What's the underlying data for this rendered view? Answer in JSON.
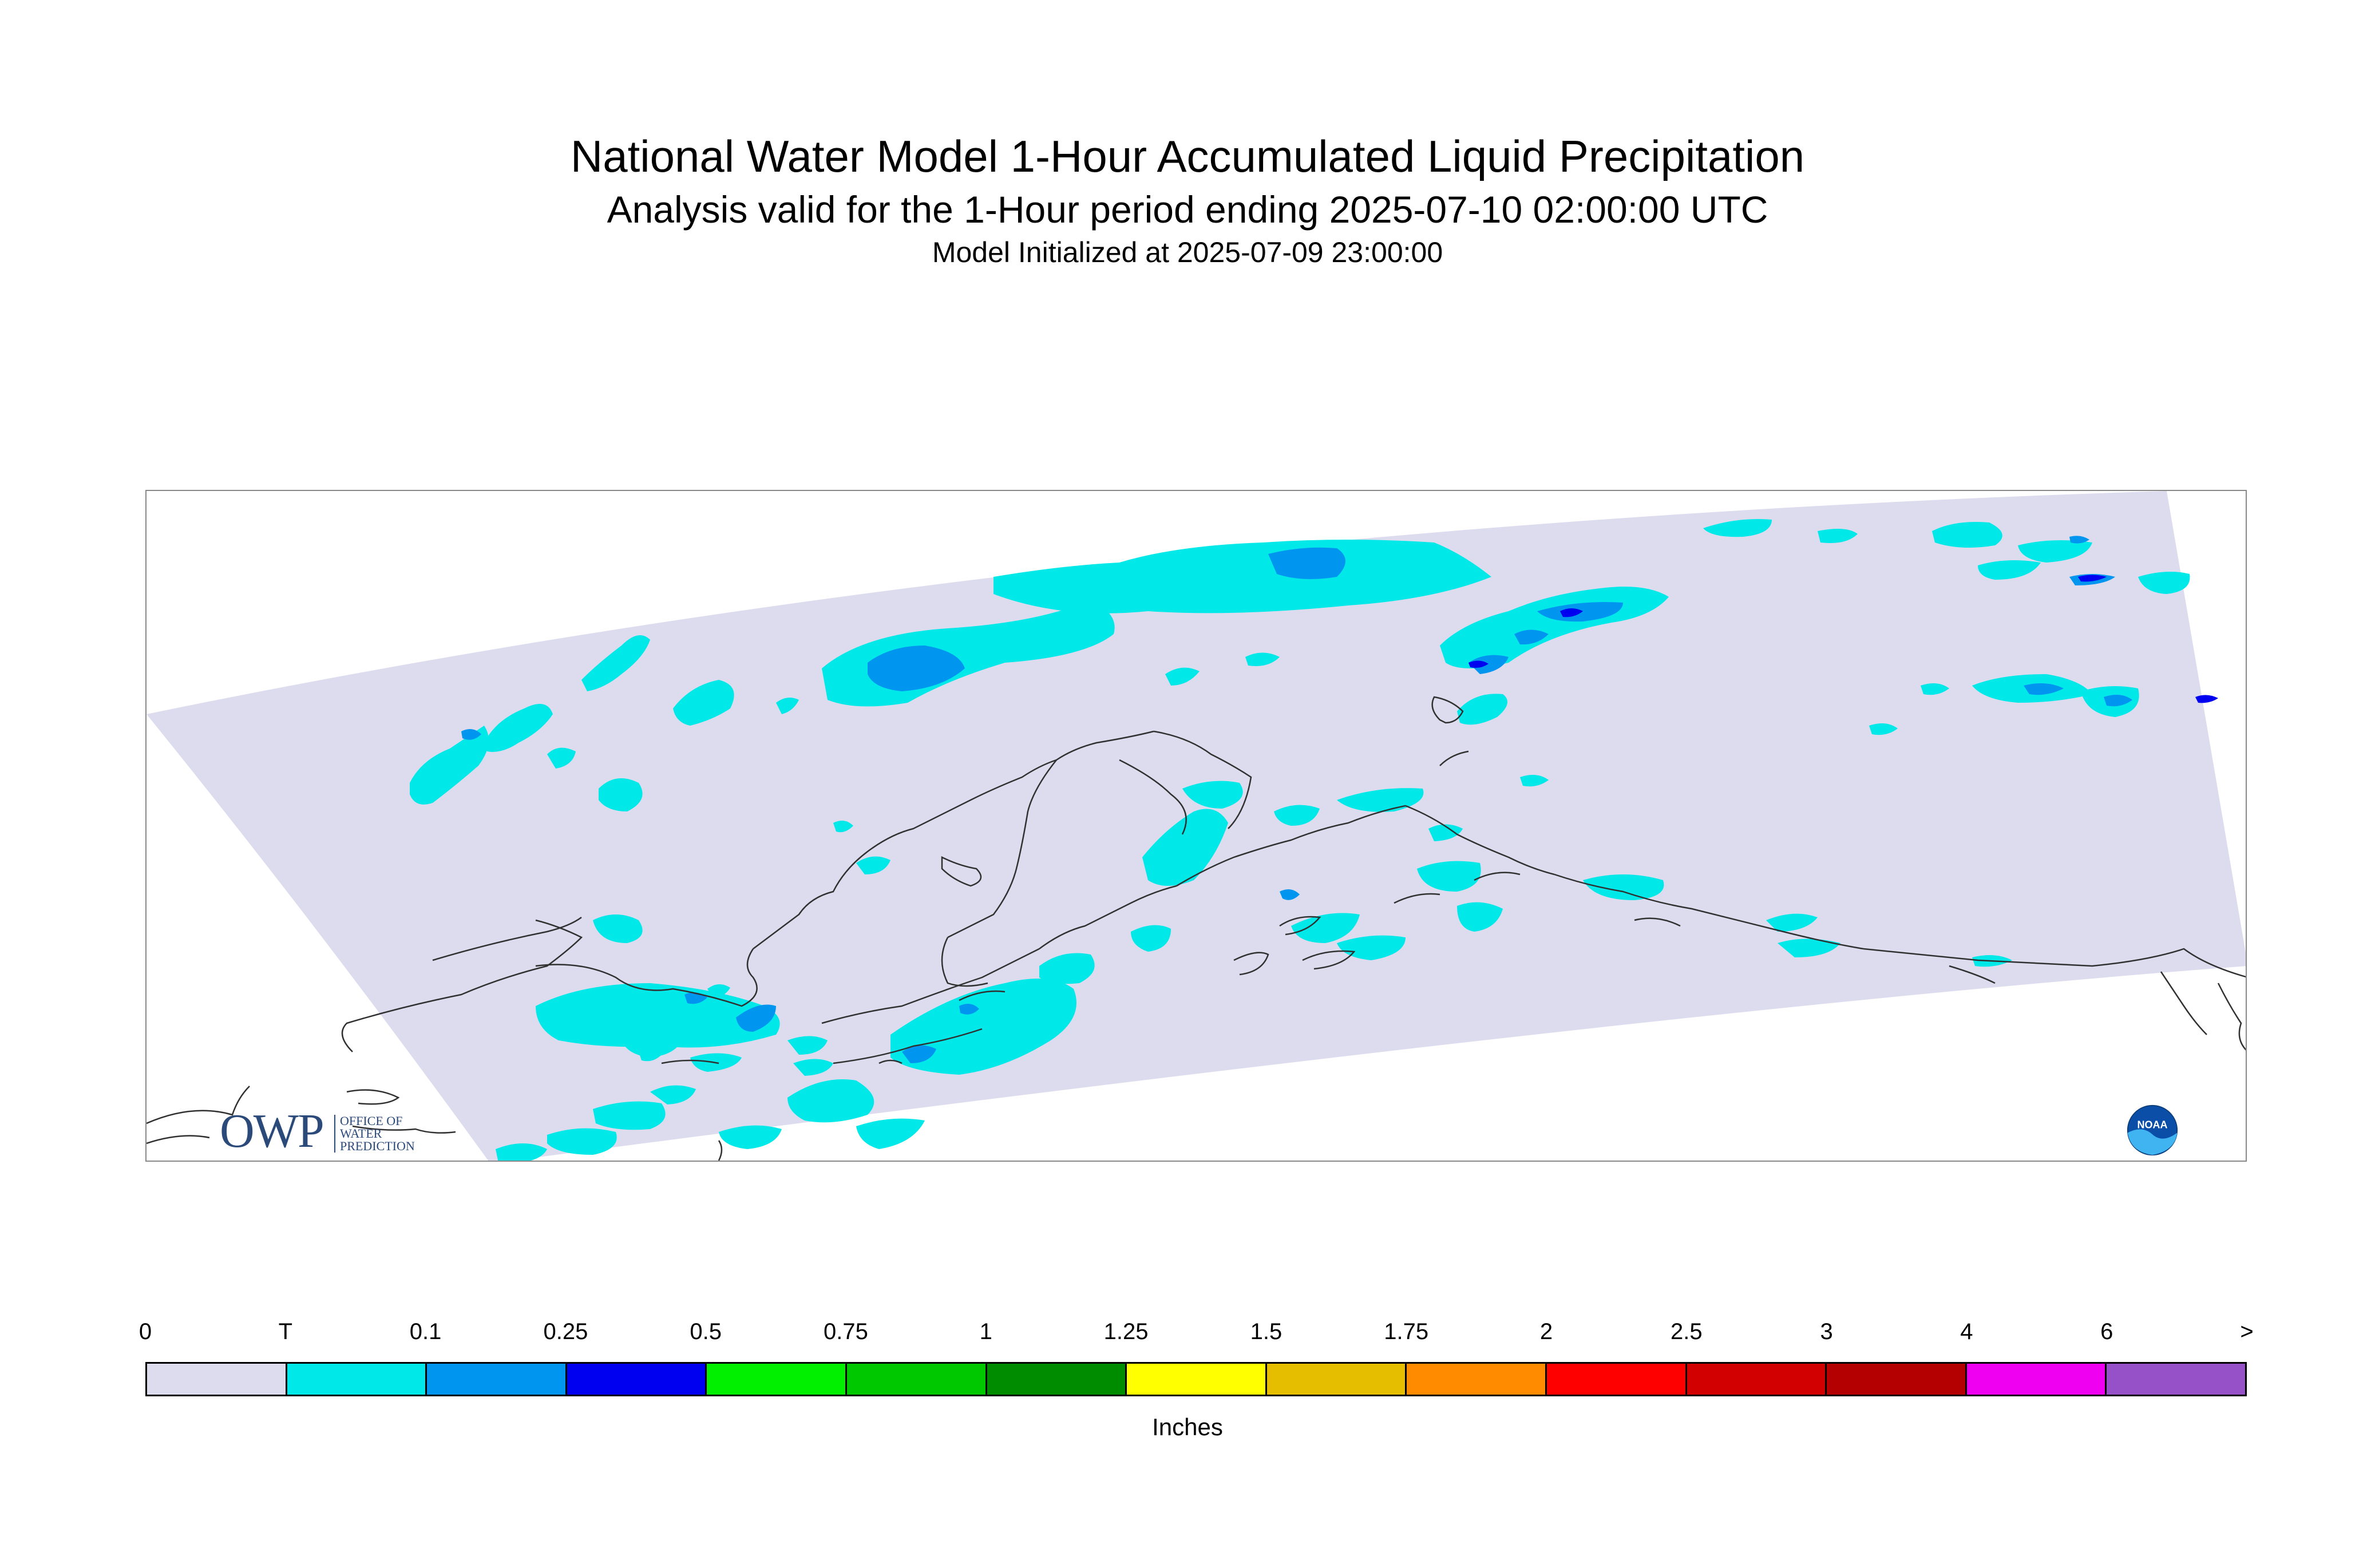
{
  "header": {
    "title": "National Water Model 1-Hour Accumulated Liquid Precipitation",
    "subtitle": "Analysis valid for the 1-Hour period ending 2025-07-10 02:00:00 UTC",
    "init_line": "Model Initialized at 2025-07-09 23:00:00"
  },
  "logos": {
    "owp_mark": "OWP",
    "owp_lines": [
      "OFFICE OF",
      "WATER",
      "PREDICTION"
    ],
    "noaa_text": "NOAA"
  },
  "legend": {
    "labels": [
      "0",
      "T",
      "0.1",
      "0.25",
      "0.5",
      "0.75",
      "1",
      "1.25",
      "1.5",
      "1.75",
      "2",
      "2.5",
      "3",
      "4",
      "6",
      ">"
    ],
    "colors": [
      "#dcdcee",
      "#00e8e8",
      "#0096f0",
      "#0000f0",
      "#00f000",
      "#00c800",
      "#008c00",
      "#ffff00",
      "#e6be00",
      "#ff8c00",
      "#ff0000",
      "#d20000",
      "#b40000",
      "#f000f0",
      "#9650c8"
    ],
    "units": "Inches"
  },
  "map": {
    "domain_color": "#dcdcee",
    "coast_color": "#303030",
    "classes_present": [
      "T",
      "0.1",
      "0.25"
    ]
  }
}
